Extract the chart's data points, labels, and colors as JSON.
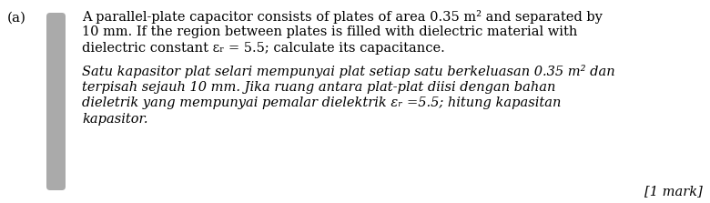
{
  "bg_color": "#ffffff",
  "label_a": "(a)",
  "sidebar_color": "#aaaaaa",
  "english_lines": [
    "A parallel-plate capacitor consists of plates of area 0.35 m² and separated by",
    "10 mm. If the region between plates is filled with dielectric material with",
    "dielectric constant εᵣ = 5.5; calculate its capacitance."
  ],
  "malay_lines": [
    "Satu kapasitor plat selari mempunyai plat setiap satu berkeluasan 0.35 m² dan",
    "terpisah sejauh 10 mm. Jika ruang antara plat-plat diisi dengan bahan",
    "dieletrik yang mempunyai pemalar dielektrik εᵣ =5.5; hitung kapasitan",
    "kapasitor."
  ],
  "mark_line": "[1 mark]",
  "text_color": "#000000",
  "text_fontsize": 10.5,
  "mark_fontsize": 10.5,
  "label_fontsize": 11.0
}
